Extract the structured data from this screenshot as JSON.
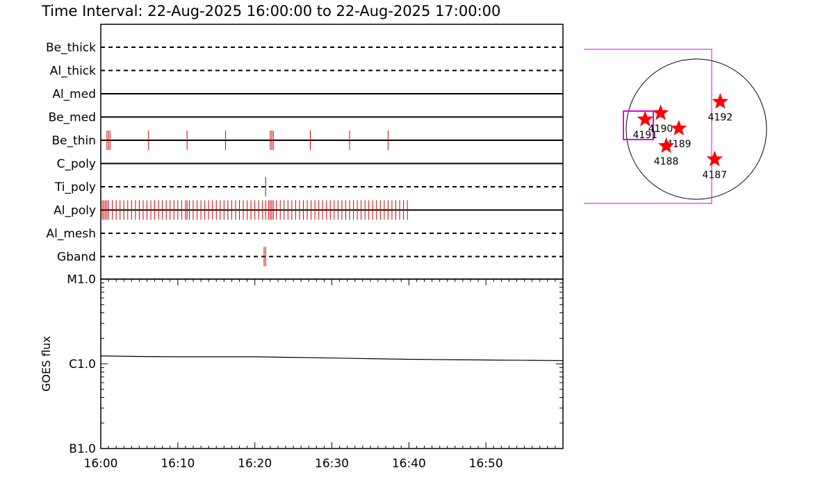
{
  "title": "Time Interval: 22-Aug-2025 16:00:00 to 22-Aug-2025 17:00:00",
  "colors": {
    "exposure": "#cc0000",
    "tipoly": "#1a2e8c",
    "frame": "#000000",
    "magenta": "#dd00dd",
    "star": "#ff0000"
  },
  "chart_data": [
    {
      "type": "timeline",
      "x_range": [
        "16:00",
        "17:00"
      ],
      "rows": [
        {
          "label": "Be_thick",
          "line": "dashed",
          "exposures": []
        },
        {
          "label": "Al_thick",
          "line": "dashed",
          "exposures": []
        },
        {
          "label": "Al_med",
          "line": "solid",
          "exposures": []
        },
        {
          "label": "Be_med",
          "line": "solid",
          "exposures": []
        },
        {
          "label": "Be_thin",
          "line": "solid",
          "exposures": [
            0.8,
            1.0,
            1.2,
            6.2,
            11.2,
            16.2,
            22.0,
            22.2,
            22.4,
            27.2,
            32.3,
            37.3
          ]
        },
        {
          "label": "C_poly",
          "line": "solid",
          "exposures": []
        },
        {
          "label": "Ti_poly",
          "line": "dashed",
          "exposures": [
            21.4
          ]
        },
        {
          "label": "Al_poly",
          "line": "solid",
          "exposures": [
            0.2,
            0.4,
            0.6,
            0.8,
            1.0,
            1.5,
            2.0,
            2.5,
            3.0,
            3.5,
            4.0,
            4.5,
            5.0,
            5.5,
            6.0,
            6.5,
            7.0,
            7.5,
            8.0,
            8.5,
            9.0,
            9.5,
            10.0,
            10.5,
            11.0,
            11.2,
            11.5,
            12.0,
            12.5,
            13.0,
            13.5,
            14.0,
            14.5,
            15.0,
            15.5,
            16.0,
            16.5,
            17.0,
            17.5,
            18.0,
            18.5,
            19.0,
            19.5,
            20.0,
            20.5,
            21.0,
            21.4,
            21.8,
            22.0,
            22.2,
            22.4,
            22.8,
            23.3,
            23.8,
            24.3,
            24.8,
            25.3,
            25.8,
            26.3,
            26.8,
            27.3,
            27.8,
            28.3,
            28.8,
            29.3,
            29.8,
            30.3,
            30.8,
            31.3,
            31.8,
            32.3,
            32.8,
            33.3,
            33.8,
            34.3,
            34.8,
            35.3,
            35.8,
            36.3,
            36.8,
            37.3,
            37.8,
            38.3,
            38.8,
            39.3,
            39.8
          ]
        },
        {
          "label": "Al_mesh",
          "line": "dashed",
          "exposures": []
        },
        {
          "label": "Gband",
          "line": "dashed",
          "exposures": [
            21.2,
            21.4
          ]
        }
      ]
    },
    {
      "type": "line",
      "ylabel": "GOES flux",
      "y_scale": "log",
      "y_ticks": [
        "M1.0",
        "C1.0",
        "B1.0"
      ],
      "ylim": [
        1e-07,
        1e-05
      ],
      "x_ticks": [
        "16:00",
        "16:10",
        "16:20",
        "16:30",
        "16:40",
        "16:50"
      ],
      "x_range_minutes": [
        0,
        60
      ],
      "series": [
        {
          "x": [
            0,
            5,
            10,
            15,
            20,
            25,
            30,
            35,
            40,
            45,
            50,
            55,
            60
          ],
          "y": [
            1.24e-06,
            1.22e-06,
            1.21e-06,
            1.21e-06,
            1.21e-06,
            1.19e-06,
            1.17e-06,
            1.15e-06,
            1.13e-06,
            1.12e-06,
            1.11e-06,
            1.1e-06,
            1.09e-06
          ]
        }
      ]
    },
    {
      "type": "scatter",
      "points": [
        {
          "label": "4192",
          "x": 0.34,
          "y": 0.39
        },
        {
          "label": "4190",
          "x": -0.51,
          "y": 0.23
        },
        {
          "label": "4191",
          "x": -0.73,
          "y": 0.14
        },
        {
          "label": "4189",
          "x": -0.25,
          "y": 0.01
        },
        {
          "label": "4188",
          "x": -0.43,
          "y": -0.24
        },
        {
          "label": "4187",
          "x": 0.26,
          "y": -0.43
        }
      ]
    }
  ]
}
